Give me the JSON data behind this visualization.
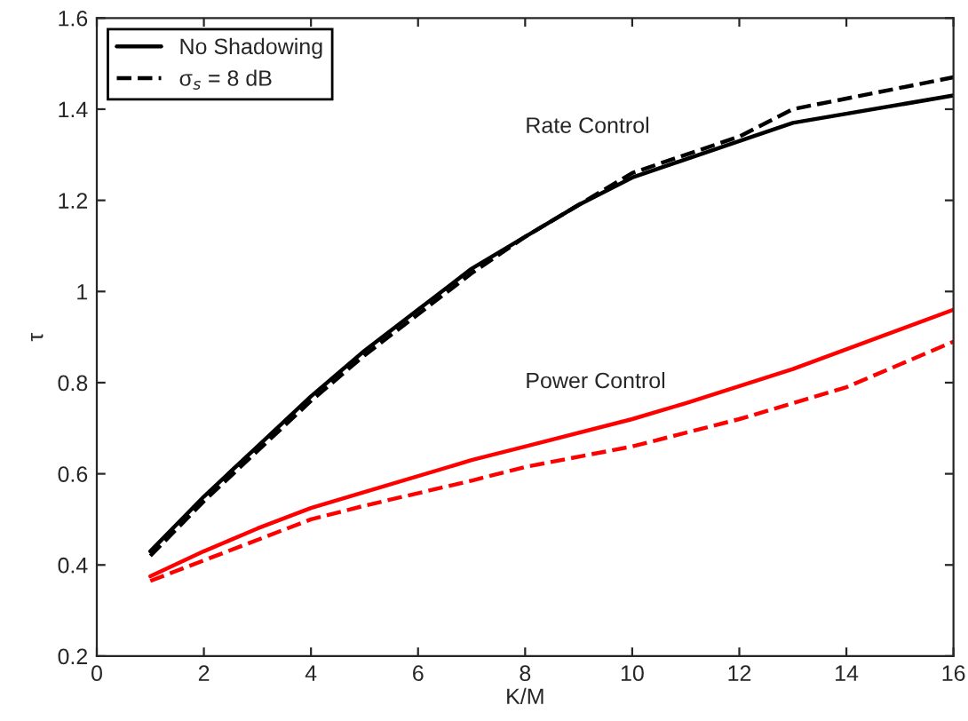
{
  "chart_data": {
    "type": "line",
    "xlabel": "K/M",
    "ylabel": "τ",
    "xlim": [
      0,
      16
    ],
    "ylim": [
      0.2,
      1.6
    ],
    "xticks": [
      0,
      2,
      4,
      6,
      8,
      10,
      12,
      14,
      16
    ],
    "yticks": [
      0.2,
      0.4,
      0.6,
      0.8,
      1,
      1.2,
      1.4,
      1.6
    ],
    "grid": false,
    "legend": "top left",
    "marker": "none",
    "series": [
      {
        "name": "No Shadowing",
        "color": "#000000",
        "line_style": "solid",
        "x": [
          1,
          2,
          3,
          4,
          5,
          6,
          7,
          8,
          9,
          10,
          12,
          13,
          16
        ],
        "values": [
          0.43,
          0.55,
          0.66,
          0.77,
          0.87,
          0.96,
          1.05,
          1.12,
          1.19,
          1.25,
          1.33,
          1.37,
          1.43
        ]
      },
      {
        "name": "σ$_{s}$ = 8 dB",
        "color": "#000000",
        "line_style": "dashed",
        "x": [
          1,
          2,
          3,
          4,
          5,
          6,
          7,
          8,
          9,
          10,
          12,
          13,
          16
        ],
        "values": [
          0.42,
          0.54,
          0.65,
          0.76,
          0.86,
          0.95,
          1.04,
          1.12,
          1.19,
          1.26,
          1.34,
          1.4,
          1.47
        ]
      },
      {
        "color": "#ff0000",
        "line_style": "solid",
        "x": [
          1,
          2,
          3,
          4,
          5,
          7,
          8,
          10,
          11,
          13,
          16
        ],
        "values": [
          0.375,
          0.43,
          0.48,
          0.525,
          0.56,
          0.63,
          0.66,
          0.72,
          0.755,
          0.83,
          0.96
        ]
      },
      {
        "color": "#ff0000",
        "line_style": "dashed",
        "x": [
          1,
          2,
          4,
          5,
          7,
          8,
          10,
          12,
          14,
          16
        ],
        "values": [
          0.365,
          0.41,
          0.5,
          0.53,
          0.585,
          0.615,
          0.66,
          0.72,
          0.79,
          0.89
        ]
      }
    ],
    "annotations": [
      "Rate Control",
      "Power Control"
    ]
  }
}
